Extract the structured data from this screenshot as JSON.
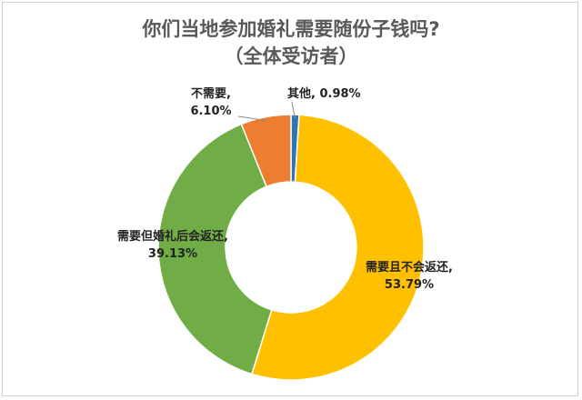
{
  "chart_data": {
    "type": "pie",
    "title": "你们当地参加婚礼需要随份子钱吗?",
    "subtitle": "（全体受访者）",
    "categories": [
      "其他",
      "需要且不会返还",
      "需要但婚礼后会返还",
      "不需要"
    ],
    "values": [
      0.98,
      53.79,
      39.13,
      6.1
    ],
    "value_labels": [
      "0.98%",
      "53.79%",
      "39.13%",
      "6.10%"
    ],
    "label_names": [
      "其他,",
      "需要且不会返还,",
      "需要但婚礼后会返还,",
      "不需要,"
    ],
    "colors": [
      "#2e75b6",
      "#ffc000",
      "#70ad47",
      "#ed7d31"
    ],
    "donut": true,
    "legend": "none"
  }
}
